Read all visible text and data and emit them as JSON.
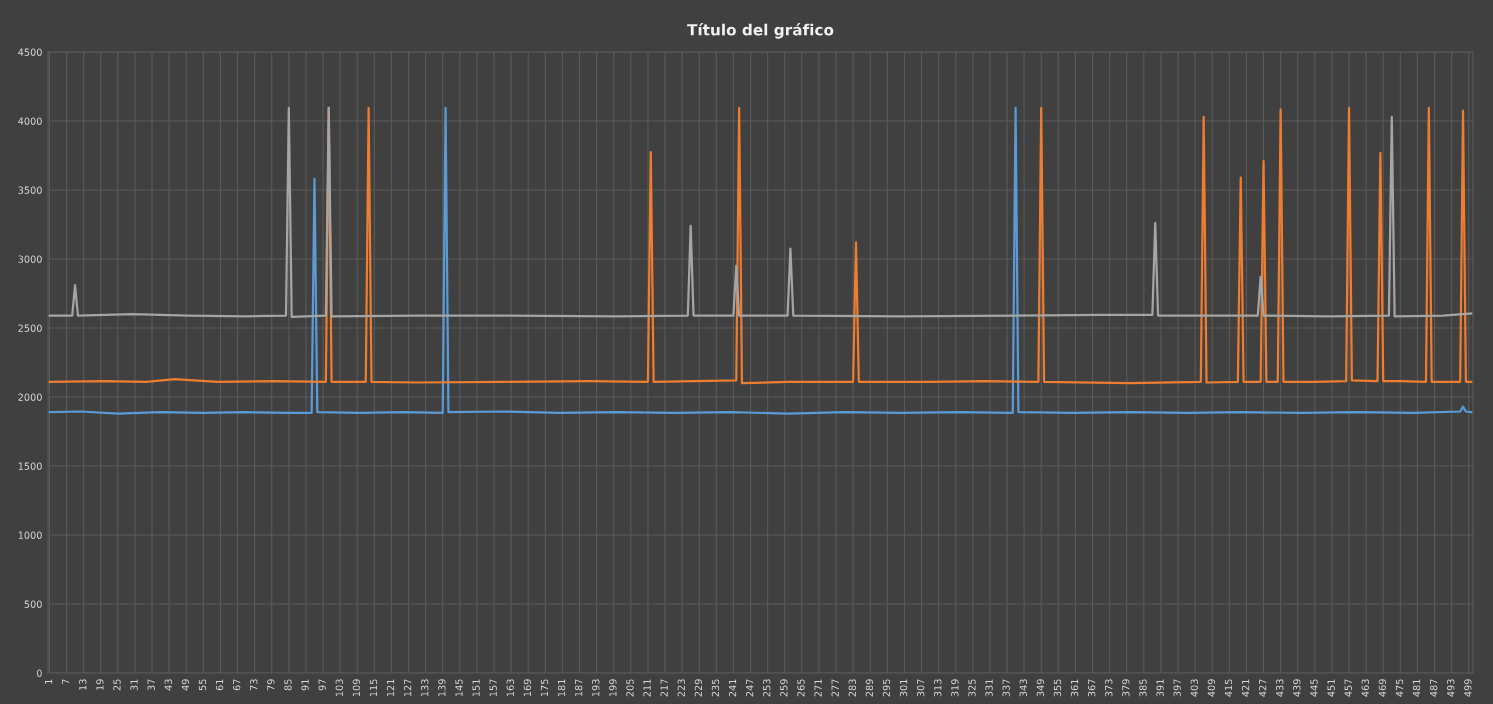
{
  "chart_data": {
    "type": "line",
    "title": "Título del gráfico",
    "xlim": [
      0.5,
      500.5
    ],
    "xticks": [
      1,
      7,
      13,
      19,
      25,
      31,
      37,
      43,
      49,
      55,
      61,
      67,
      73,
      79,
      85,
      91,
      97,
      103,
      109,
      115,
      121,
      127,
      133,
      139,
      145,
      151,
      157,
      163,
      169,
      175,
      181,
      187,
      193,
      199,
      205,
      211,
      217,
      223,
      229,
      235,
      241,
      247,
      253,
      259,
      265,
      271,
      277,
      283,
      289,
      295,
      301,
      307,
      313,
      319,
      325,
      331,
      337,
      343,
      349,
      355,
      361,
      367,
      373,
      379,
      385,
      391,
      397,
      403,
      409,
      415,
      421,
      427,
      433,
      439,
      445,
      451,
      457,
      463,
      469,
      475,
      481,
      487,
      493,
      499
    ],
    "ylim": [
      0,
      4500
    ],
    "yticks": [
      0,
      500,
      1000,
      1500,
      2000,
      2500,
      3000,
      3500,
      4000,
      4500
    ],
    "grid": true,
    "marker": "none",
    "line_style": "solid",
    "series": [
      {
        "color": "#5b9bd5",
        "x": [
          1,
          12,
          25,
          40,
          55,
          70,
          85,
          93,
          94,
          95,
          110,
          125,
          139,
          140,
          141,
          160,
          180,
          200,
          220,
          240,
          260,
          280,
          300,
          320,
          339,
          340,
          341,
          360,
          380,
          400,
          420,
          440,
          460,
          480,
          496,
          497,
          498,
          500
        ],
        "values": [
          1890,
          1895,
          1880,
          1890,
          1885,
          1890,
          1885,
          1885,
          3580,
          1890,
          1885,
          1890,
          1885,
          4095,
          1890,
          1895,
          1885,
          1890,
          1885,
          1890,
          1880,
          1890,
          1885,
          1890,
          1885,
          4095,
          1890,
          1885,
          1890,
          1885,
          1890,
          1885,
          1890,
          1885,
          1895,
          1930,
          1895,
          1890
        ]
      },
      {
        "color": "#ed7d31",
        "x": [
          1,
          20,
          35,
          45,
          60,
          80,
          98,
          99,
          100,
          112,
          113,
          114,
          130,
          160,
          190,
          211,
          212,
          213,
          242,
          243,
          244,
          260,
          283,
          284,
          285,
          310,
          330,
          348,
          349,
          350,
          380,
          405,
          406,
          407,
          418,
          419,
          420,
          426,
          427,
          428,
          432,
          433,
          434,
          445,
          456,
          457,
          458,
          467,
          468,
          469,
          475,
          484,
          485,
          486,
          496,
          497,
          498,
          500
        ],
        "values": [
          2110,
          2115,
          2110,
          2130,
          2110,
          2115,
          2110,
          4095,
          2110,
          2110,
          4095,
          2110,
          2105,
          2110,
          2115,
          2110,
          3775,
          2110,
          2120,
          4095,
          2100,
          2110,
          2110,
          3120,
          2110,
          2110,
          2115,
          2110,
          4095,
          2110,
          2100,
          2110,
          4030,
          2105,
          2110,
          3590,
          2110,
          2110,
          3710,
          2110,
          2110,
          4085,
          2110,
          2110,
          2115,
          4095,
          2120,
          2115,
          3770,
          2115,
          2115,
          2110,
          4095,
          2110,
          2110,
          4075,
          2110,
          2110
        ]
      },
      {
        "color": "#a5a5a5",
        "x": [
          1,
          9,
          10,
          11,
          30,
          50,
          70,
          84,
          85,
          86,
          98,
          99,
          100,
          130,
          160,
          200,
          225,
          226,
          227,
          241,
          242,
          243,
          260,
          261,
          262,
          300,
          340,
          370,
          388,
          389,
          390,
          410,
          425,
          426,
          427,
          450,
          471,
          472,
          473,
          490,
          500
        ],
        "values": [
          2590,
          2590,
          2810,
          2590,
          2600,
          2590,
          2585,
          2590,
          4095,
          2580,
          2590,
          4095,
          2585,
          2590,
          2590,
          2585,
          2590,
          3240,
          2590,
          2590,
          2950,
          2590,
          2590,
          3075,
          2590,
          2585,
          2590,
          2595,
          2595,
          3260,
          2590,
          2590,
          2590,
          2870,
          2590,
          2585,
          2590,
          4030,
          2585,
          2590,
          2605
        ]
      }
    ]
  }
}
